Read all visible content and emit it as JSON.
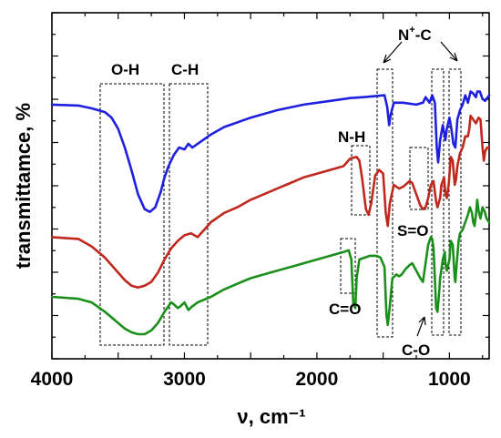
{
  "chart_data": {
    "type": "line",
    "xlabel": "ν, cm⁻¹",
    "ylabel": "transmittamce, %",
    "xlim": [
      4000,
      700
    ],
    "x_reversed": true,
    "x_ticks": [
      4000,
      3000,
      2000,
      1000
    ],
    "y_ticks_labeled": false,
    "legend": "none",
    "grid": false,
    "series": [
      {
        "color": "#1f1fe0",
        "points": [
          [
            4000,
            103
          ],
          [
            3800,
            102.5
          ],
          [
            3700,
            101
          ],
          [
            3600,
            99
          ],
          [
            3550,
            96
          ],
          [
            3500,
            90
          ],
          [
            3450,
            80
          ],
          [
            3400,
            68
          ],
          [
            3350,
            55
          ],
          [
            3300,
            47
          ],
          [
            3260,
            45.5
          ],
          [
            3220,
            48
          ],
          [
            3180,
            56
          ],
          [
            3150,
            64
          ],
          [
            3120,
            70
          ],
          [
            3080,
            76
          ],
          [
            3040,
            80
          ],
          [
            3000,
            79
          ],
          [
            2970,
            82
          ],
          [
            2940,
            80
          ],
          [
            2900,
            82
          ],
          [
            2800,
            87
          ],
          [
            2700,
            91
          ],
          [
            2500,
            96
          ],
          [
            2300,
            100
          ],
          [
            2100,
            103
          ],
          [
            1900,
            105
          ],
          [
            1750,
            106.5
          ],
          [
            1650,
            107
          ],
          [
            1560,
            107.5
          ],
          [
            1490,
            108
          ],
          [
            1470,
            102
          ],
          [
            1455,
            92
          ],
          [
            1445,
            97
          ],
          [
            1420,
            104
          ],
          [
            1350,
            104
          ],
          [
            1250,
            103
          ],
          [
            1200,
            104
          ],
          [
            1180,
            107
          ],
          [
            1150,
            104
          ],
          [
            1130,
            108
          ],
          [
            1110,
            104
          ],
          [
            1095,
            80
          ],
          [
            1085,
            72
          ],
          [
            1070,
            84
          ],
          [
            1050,
            92
          ],
          [
            1030,
            84
          ],
          [
            1020,
            90
          ],
          [
            1000,
            96
          ],
          [
            985,
            90
          ],
          [
            970,
            82
          ],
          [
            955,
            80
          ],
          [
            940,
            95
          ],
          [
            920,
            100
          ],
          [
            900,
            103
          ],
          [
            880,
            108
          ],
          [
            860,
            104
          ],
          [
            840,
            110
          ],
          [
            820,
            109
          ],
          [
            800,
            107
          ],
          [
            790,
            110
          ],
          [
            770,
            110
          ],
          [
            750,
            106
          ],
          [
            730,
            105
          ],
          [
            710,
            107
          ],
          [
            700,
            108
          ]
        ]
      },
      {
        "color": "#c0281e",
        "points": [
          [
            4000,
            32
          ],
          [
            3800,
            31
          ],
          [
            3700,
            27
          ],
          [
            3600,
            21
          ],
          [
            3500,
            13
          ],
          [
            3450,
            9
          ],
          [
            3400,
            6
          ],
          [
            3350,
            5
          ],
          [
            3300,
            6
          ],
          [
            3250,
            8
          ],
          [
            3200,
            13
          ],
          [
            3150,
            20
          ],
          [
            3100,
            26
          ],
          [
            3050,
            30
          ],
          [
            3000,
            33
          ],
          [
            2950,
            34
          ],
          [
            2900,
            32
          ],
          [
            2850,
            36
          ],
          [
            2800,
            40
          ],
          [
            2700,
            45
          ],
          [
            2600,
            48
          ],
          [
            2500,
            52
          ],
          [
            2400,
            55
          ],
          [
            2300,
            58
          ],
          [
            2200,
            61
          ],
          [
            2100,
            64
          ],
          [
            2000,
            66
          ],
          [
            1900,
            68
          ],
          [
            1800,
            70
          ],
          [
            1750,
            74
          ],
          [
            1700,
            75
          ],
          [
            1680,
            73
          ],
          [
            1660,
            64
          ],
          [
            1630,
            47
          ],
          [
            1610,
            44
          ],
          [
            1590,
            50
          ],
          [
            1560,
            65
          ],
          [
            1530,
            68
          ],
          [
            1500,
            66
          ],
          [
            1480,
            45
          ],
          [
            1465,
            38
          ],
          [
            1450,
            50
          ],
          [
            1420,
            60
          ],
          [
            1380,
            58
          ],
          [
            1350,
            59
          ],
          [
            1300,
            62
          ],
          [
            1280,
            61
          ],
          [
            1260,
            57
          ],
          [
            1240,
            53
          ],
          [
            1220,
            49
          ],
          [
            1200,
            47
          ],
          [
            1180,
            48
          ],
          [
            1160,
            53
          ],
          [
            1140,
            60
          ],
          [
            1120,
            62
          ],
          [
            1100,
            51
          ],
          [
            1090,
            48
          ],
          [
            1070,
            53
          ],
          [
            1060,
            60
          ],
          [
            1040,
            64
          ],
          [
            1030,
            55
          ],
          [
            1020,
            53
          ],
          [
            1005,
            60
          ],
          [
            990,
            75
          ],
          [
            975,
            73
          ],
          [
            960,
            60
          ],
          [
            950,
            63
          ],
          [
            940,
            70
          ],
          [
            920,
            77
          ],
          [
            900,
            80
          ],
          [
            880,
            86
          ],
          [
            860,
            86
          ],
          [
            850,
            90
          ],
          [
            840,
            97
          ],
          [
            820,
            95
          ],
          [
            800,
            93
          ],
          [
            780,
            96
          ],
          [
            765,
            95
          ],
          [
            750,
            80
          ],
          [
            740,
            73
          ],
          [
            730,
            78
          ],
          [
            715,
            80
          ],
          [
            700,
            80
          ]
        ]
      },
      {
        "color": "#1a8f1a",
        "points": [
          [
            4000,
            0
          ],
          [
            3800,
            -1
          ],
          [
            3700,
            -3
          ],
          [
            3600,
            -8
          ],
          [
            3500,
            -14
          ],
          [
            3450,
            -17
          ],
          [
            3400,
            -19
          ],
          [
            3350,
            -20
          ],
          [
            3300,
            -20
          ],
          [
            3250,
            -18
          ],
          [
            3200,
            -14
          ],
          [
            3150,
            -8
          ],
          [
            3100,
            -3
          ],
          [
            3080,
            -4
          ],
          [
            3050,
            -6
          ],
          [
            3030,
            -5
          ],
          [
            3000,
            -3
          ],
          [
            2970,
            -7
          ],
          [
            2940,
            -5
          ],
          [
            2900,
            -3
          ],
          [
            2800,
            0
          ],
          [
            2700,
            4
          ],
          [
            2600,
            7
          ],
          [
            2500,
            10
          ],
          [
            2400,
            12
          ],
          [
            2300,
            14
          ],
          [
            2200,
            16
          ],
          [
            2100,
            18
          ],
          [
            2000,
            20
          ],
          [
            1900,
            22
          ],
          [
            1800,
            24
          ],
          [
            1760,
            25
          ],
          [
            1740,
            20
          ],
          [
            1725,
            -4
          ],
          [
            1710,
            -6
          ],
          [
            1700,
            10
          ],
          [
            1680,
            20
          ],
          [
            1600,
            22
          ],
          [
            1550,
            22
          ],
          [
            1520,
            21
          ],
          [
            1490,
            16
          ],
          [
            1475,
            -10
          ],
          [
            1465,
            -15
          ],
          [
            1450,
            -5
          ],
          [
            1430,
            10
          ],
          [
            1400,
            12
          ],
          [
            1380,
            11
          ],
          [
            1360,
            12
          ],
          [
            1330,
            15
          ],
          [
            1300,
            17
          ],
          [
            1280,
            18
          ],
          [
            1250,
            14
          ],
          [
            1220,
            10
          ],
          [
            1200,
            8
          ],
          [
            1180,
            18
          ],
          [
            1160,
            28
          ],
          [
            1140,
            32
          ],
          [
            1130,
            31
          ],
          [
            1120,
            26
          ],
          [
            1110,
            10
          ],
          [
            1100,
            -6
          ],
          [
            1090,
            -8
          ],
          [
            1080,
            0
          ],
          [
            1070,
            10
          ],
          [
            1050,
            20
          ],
          [
            1035,
            24
          ],
          [
            1030,
            18
          ],
          [
            1020,
            14
          ],
          [
            1000,
            20
          ],
          [
            990,
            30
          ],
          [
            975,
            28
          ],
          [
            960,
            10
          ],
          [
            955,
            8
          ],
          [
            945,
            18
          ],
          [
            930,
            30
          ],
          [
            920,
            34
          ],
          [
            900,
            36
          ],
          [
            880,
            40
          ],
          [
            860,
            44
          ],
          [
            845,
            48
          ],
          [
            830,
            45
          ],
          [
            820,
            40
          ],
          [
            810,
            38
          ],
          [
            800,
            44
          ],
          [
            790,
            52
          ],
          [
            780,
            46
          ],
          [
            765,
            42
          ],
          [
            750,
            48
          ],
          [
            735,
            46
          ],
          [
            720,
            42
          ],
          [
            700,
            40
          ]
        ]
      }
    ],
    "annotations": {
      "oh": "O-H",
      "ch": "C-H",
      "nh": "N-H",
      "co_double": "C=O",
      "so": "S=O",
      "co_single": "C-O",
      "nplus_n": "N",
      "nplus_sup": "+",
      "nplus_c": "-C"
    }
  }
}
